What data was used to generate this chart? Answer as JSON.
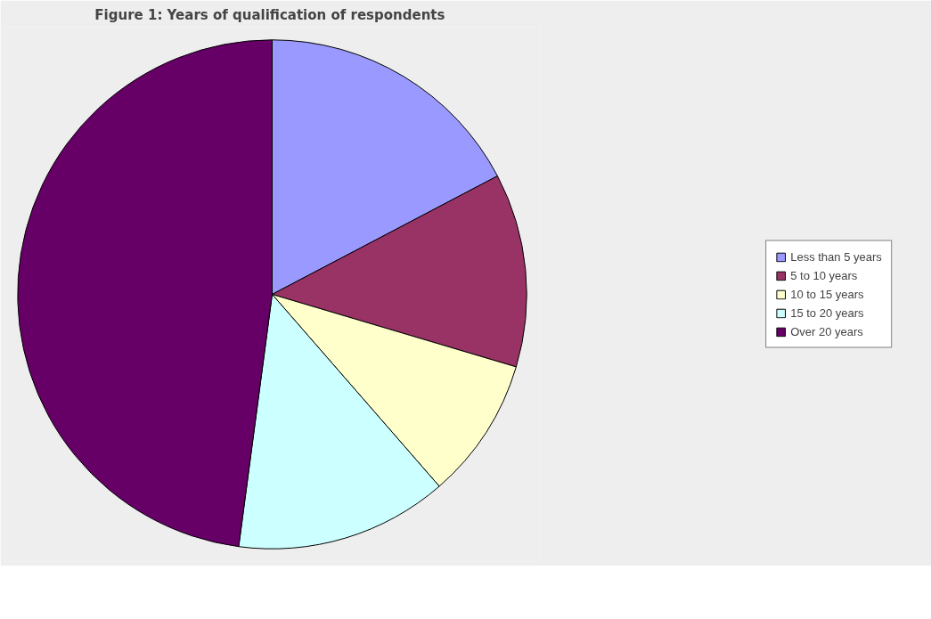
{
  "chart_data": {
    "type": "pie",
    "title": "Figure 1:  Years of qualification of respondents",
    "categories": [
      "Less than 5 years",
      "5 to 10 years",
      "10 to 15 years",
      "15 to 20 years",
      "Over 20 years"
    ],
    "values": [
      17.3,
      12.3,
      9.0,
      13.5,
      47.9
    ],
    "colors": [
      "#9999ff",
      "#993366",
      "#ffffcc",
      "#ccffff",
      "#660066"
    ],
    "legend": "right"
  }
}
